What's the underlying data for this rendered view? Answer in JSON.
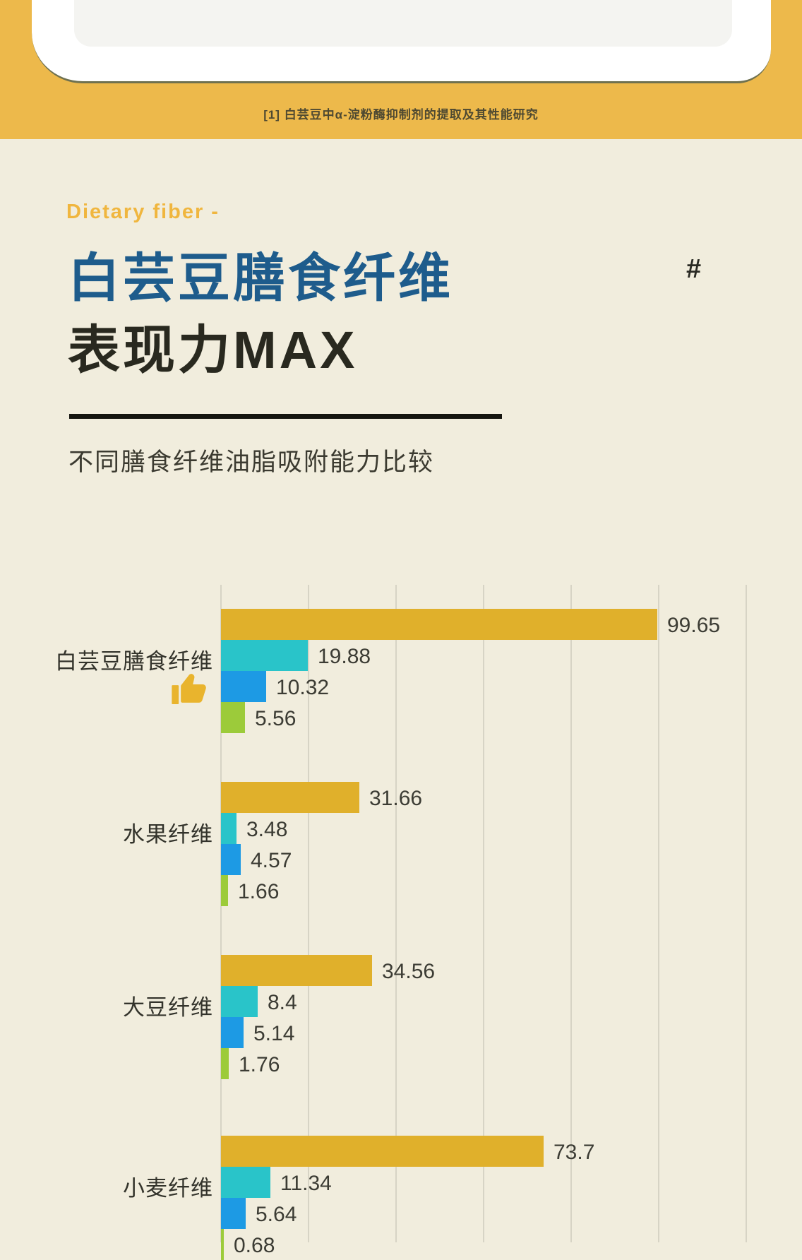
{
  "header": {
    "citation": "[1] 白芸豆中α-淀粉酶抑制剂的提取及其性能研究"
  },
  "section": {
    "eyebrow": "Dietary fiber -",
    "title_line1": "白芸豆膳食纤维",
    "title_line2": "表现力MAX",
    "hash": "#",
    "subtitle": "不同膳食纤维油脂吸附能力比较"
  },
  "chart_data": {
    "type": "bar",
    "orientation": "horizontal",
    "title": "不同膳食纤维油脂吸附能力比较",
    "categories": [
      "白芸豆膳食纤维",
      "水果纤维",
      "大豆纤维",
      "小麦纤维"
    ],
    "series": [
      {
        "color": "#e0b02b",
        "values": [
          99.65,
          31.66,
          34.56,
          73.7
        ]
      },
      {
        "color": "#29c4c9",
        "values": [
          19.88,
          3.48,
          8.4,
          11.34
        ]
      },
      {
        "color": "#1d9ae4",
        "values": [
          10.32,
          4.57,
          5.14,
          5.64
        ]
      },
      {
        "color": "#9ccb3a",
        "values": [
          5.56,
          1.66,
          1.76,
          0.68
        ]
      }
    ],
    "x_axis": {
      "min": 0,
      "max": 120,
      "gridline_step": 20
    },
    "grid": true,
    "legend": "none",
    "highlight_category": "白芸豆膳食纤维",
    "highlight_marker": "thumbs-up-icon"
  },
  "colors": {
    "page_background": "#f1eddd",
    "header_background": "#edb94b",
    "title_blue": "#1e5c8c",
    "accent_gold": "#f0b63e",
    "thumb_yellow": "#e9b42d"
  }
}
